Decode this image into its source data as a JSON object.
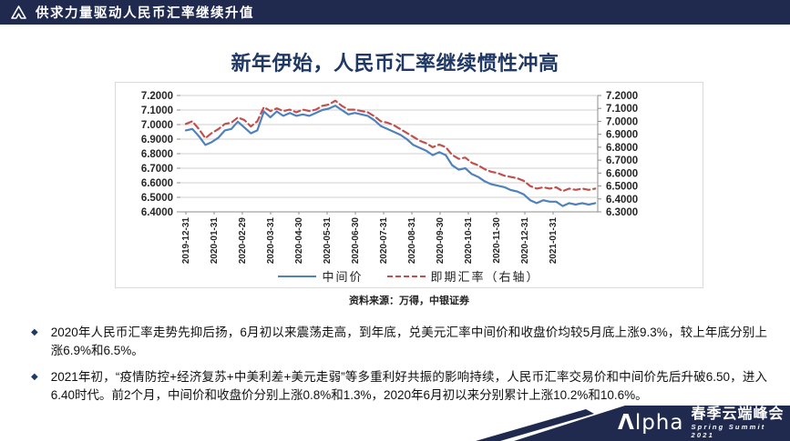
{
  "header": {
    "title": "供求力量驱动人民币汇率继续升值"
  },
  "slide_title": "新年伊始，人民币汇率继续惯性冲高",
  "chart_data": {
    "type": "line",
    "title": "新年伊始，人民币汇率继续惯性冲高",
    "source": "资料来源：万得，中银证券",
    "legend_position": "bottom",
    "grid": true,
    "x_tick_labels": [
      "2019-12-31",
      "2020-01-31",
      "2020-02-29",
      "2020-03-31",
      "2020-04-30",
      "2020-05-31",
      "2020-06-30",
      "2020-07-31",
      "2020-08-31",
      "2020-09-30",
      "2020-10-31",
      "2020-11-30",
      "2020-12-31",
      "2021-01-31"
    ],
    "left_axis": {
      "max": 7.2,
      "min": 6.4,
      "step": 0.1,
      "tick_labels": [
        "7.2000",
        "7.1000",
        "7.0000",
        "6.9000",
        "6.8000",
        "6.7000",
        "6.6000",
        "6.5000",
        "6.4000"
      ]
    },
    "right_axis": {
      "max": 7.2,
      "min": 6.3,
      "step": 0.1,
      "tick_labels": [
        "7.2000",
        "7.1000",
        "7.0000",
        "6.9000",
        "6.8000",
        "6.7000",
        "6.6000",
        "6.5000",
        "6.4000",
        "6.3000"
      ]
    },
    "x_months": [
      0,
      0.23,
      0.46,
      0.69,
      0.92,
      1.15,
      1.38,
      1.61,
      1.84,
      2.07,
      2.3,
      2.53,
      2.76,
      2.99,
      3.22,
      3.45,
      3.68,
      3.91,
      4.14,
      4.37,
      4.6,
      4.83,
      5.06,
      5.29,
      5.52,
      5.75,
      5.98,
      6.21,
      6.44,
      6.67,
      6.9,
      7.13,
      7.36,
      7.59,
      7.82,
      8.05,
      8.28,
      8.51,
      8.74,
      8.97,
      9.2,
      9.43,
      9.66,
      9.89,
      10.12,
      10.35,
      10.58,
      10.81,
      11.04,
      11.27,
      11.5,
      11.73,
      11.96,
      12.19,
      12.42,
      12.65,
      12.88,
      13.11,
      13.34,
      13.57,
      13.8,
      14.03,
      14.26,
      14.49
    ],
    "series": [
      {
        "name": "中间价",
        "axis": "left",
        "color": "#4F81BD",
        "style": "solid",
        "values": [
          6.96,
          6.97,
          6.92,
          6.86,
          6.88,
          6.91,
          6.96,
          6.97,
          7.02,
          6.98,
          6.94,
          6.96,
          7.09,
          7.05,
          7.09,
          7.06,
          7.08,
          7.06,
          7.07,
          7.06,
          7.08,
          7.1,
          7.11,
          7.13,
          7.1,
          7.07,
          7.08,
          7.07,
          7.06,
          7.03,
          6.99,
          6.97,
          6.95,
          6.93,
          6.9,
          6.86,
          6.84,
          6.82,
          6.79,
          6.81,
          6.79,
          6.72,
          6.69,
          6.7,
          6.66,
          6.64,
          6.61,
          6.59,
          6.58,
          6.57,
          6.55,
          6.54,
          6.52,
          6.48,
          6.46,
          6.48,
          6.47,
          6.47,
          6.44,
          6.46,
          6.45,
          6.46,
          6.45,
          6.46
        ]
      },
      {
        "name": "即期汇率（右轴）",
        "axis": "right",
        "color": "#C0504D",
        "style": "dashed",
        "values": [
          6.98,
          7.0,
          6.94,
          6.87,
          6.91,
          6.94,
          6.98,
          6.99,
          7.03,
          7.01,
          6.96,
          7.0,
          7.11,
          7.08,
          7.1,
          7.08,
          7.09,
          7.07,
          7.09,
          7.08,
          7.09,
          7.12,
          7.13,
          7.16,
          7.12,
          7.09,
          7.09,
          7.08,
          7.07,
          7.04,
          7.0,
          6.99,
          6.97,
          6.94,
          6.91,
          6.88,
          6.85,
          6.83,
          6.8,
          6.82,
          6.8,
          6.74,
          6.71,
          6.72,
          6.68,
          6.66,
          6.63,
          6.61,
          6.6,
          6.58,
          6.57,
          6.56,
          6.54,
          6.5,
          6.48,
          6.49,
          6.48,
          6.49,
          6.46,
          6.48,
          6.47,
          6.48,
          6.47,
          6.48
        ]
      }
    ]
  },
  "bullets": [
    {
      "text": "2020年人民币汇率走势先抑后扬，6月初以来震荡走高，到年底，兑美元汇率中间价和收盘价均较5月底上涨9.3%，较上年底分别上涨6.9%和6.5%。"
    },
    {
      "text": "2021年初，“疫情防控+经济复苏+中美利差+美元走弱”等多重利好共振的影响持续，人民币汇率交易价和中间价先后升破6.50，进入6.40时代。前2个月，中间价和收盘价分别上涨0.8%和1.3%，2020年6月初以来分别累计上涨10.2%和10.6%。"
    }
  ],
  "footer": {
    "brand_first": "Λ",
    "brand_rest": "lpha",
    "banner_title": "春季云端峰会",
    "banner_subtitle": "Spring Summit 2021",
    "navy": "#1F2A4E"
  },
  "bullet_marker": "◆"
}
